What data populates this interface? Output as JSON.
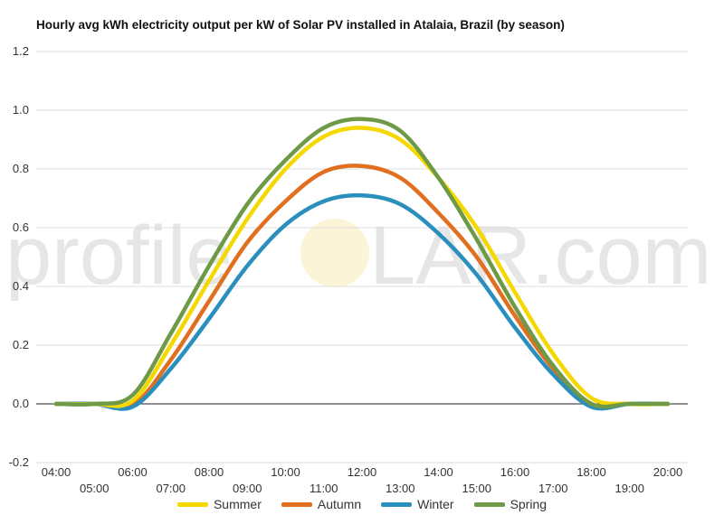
{
  "chart_data": {
    "type": "line",
    "title": "Hourly avg kWh electricity output per kW of Solar PV installed in Atalaia, Brazil (by season)",
    "xlabel": "",
    "ylabel": "",
    "ylim": [
      -0.2,
      1.2
    ],
    "yticks": [
      "-0.2",
      "0.0",
      "0.2",
      "0.4",
      "0.6",
      "0.8",
      "1.0",
      "1.2"
    ],
    "x": [
      "04:00",
      "05:00",
      "06:00",
      "07:00",
      "08:00",
      "09:00",
      "10:00",
      "11:00",
      "12:00",
      "13:00",
      "14:00",
      "15:00",
      "16:00",
      "17:00",
      "18:00",
      "19:00",
      "20:00"
    ],
    "grid": true,
    "legend": "bottom",
    "series": [
      {
        "name": "Summer",
        "color": "#f5d800",
        "values": [
          0,
          0,
          0.01,
          0.2,
          0.42,
          0.63,
          0.8,
          0.91,
          0.94,
          0.9,
          0.77,
          0.6,
          0.38,
          0.17,
          0.02,
          0,
          0
        ]
      },
      {
        "name": "Autumn",
        "color": "#e07020",
        "values": [
          0,
          0,
          -0.005,
          0.15,
          0.35,
          0.55,
          0.69,
          0.79,
          0.81,
          0.77,
          0.65,
          0.5,
          0.3,
          0.12,
          0,
          0,
          0
        ]
      },
      {
        "name": "Winter",
        "color": "#2a8fbd",
        "values": [
          0,
          0,
          -0.01,
          0.12,
          0.29,
          0.47,
          0.61,
          0.69,
          0.71,
          0.68,
          0.58,
          0.44,
          0.26,
          0.1,
          -0.01,
          0,
          0
        ]
      },
      {
        "name": "Spring",
        "color": "#6e9a48",
        "values": [
          0,
          0,
          0.03,
          0.24,
          0.47,
          0.68,
          0.83,
          0.94,
          0.97,
          0.93,
          0.77,
          0.56,
          0.33,
          0.13,
          0,
          0,
          0
        ]
      }
    ]
  },
  "watermark": {
    "text_left": "profile",
    "text_right": "LAR.com"
  }
}
